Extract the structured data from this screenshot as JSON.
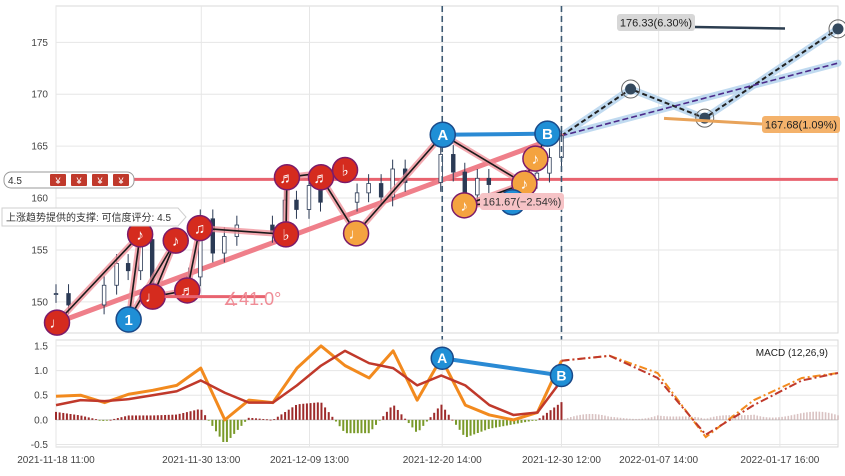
{
  "chart_data": [
    {
      "type": "line",
      "panel": "price",
      "y_ticks": [
        150,
        155,
        160,
        165,
        170,
        175
      ],
      "ylim": [
        147,
        178.5
      ],
      "x_range": [
        "2021-11-18 11:00",
        "2022-01-22 12:00"
      ],
      "x_ticks": [
        "2021-11-18 11:00",
        "2021-11-30 13:00",
        "2021-12-09 13:00",
        "2021-12-20 14:00",
        "2021-12-30 12:00",
        "2022-01-07 14:00",
        "2022-01-17 16:00"
      ],
      "grid": true,
      "series": [
        {
          "kind": "candlestick-approx",
          "x": [
            "2021-11-18 11:00",
            "2021-11-19 12:00",
            "2021-11-22 11:00",
            "2021-11-23 12:00",
            "2021-11-24 11:00",
            "2021-11-25 12:00",
            "2021-11-26 11:00",
            "2021-11-29 12:00",
            "2021-11-30 11:00",
            "2021-12-01 12:00",
            "2021-12-02 11:00",
            "2021-12-03 12:00",
            "2021-12-06 11:00",
            "2021-12-07 12:00",
            "2021-12-08 11:00",
            "2021-12-09 12:00",
            "2021-12-10 11:00",
            "2021-12-13 12:00",
            "2021-12-14 11:00",
            "2021-12-15 12:00",
            "2021-12-16 11:00",
            "2021-12-17 12:00",
            "2021-12-20 11:00",
            "2021-12-21 12:00",
            "2021-12-22 11:00",
            "2021-12-23 12:00",
            "2021-12-24 11:00",
            "2021-12-27 12:00",
            "2021-12-28 11:00",
            "2021-12-29 12:00",
            "2021-12-30 12:00"
          ],
          "close": [
            150.8,
            149.7,
            151.6,
            153.7,
            153.0,
            156.0,
            151.3,
            152.4,
            158.0,
            154.7,
            156.3,
            157.4,
            156.6,
            159.8,
            158.9,
            161.2,
            159.6,
            160.5,
            161.4,
            160.1,
            162.8,
            161.5,
            164.2,
            162.5,
            160.3,
            161.9,
            161.3,
            161.8,
            162.4,
            163.9,
            166.0
          ]
        }
      ],
      "wave_points": {
        "labels": [
          "♩",
          "1",
          "♩",
          "♪",
          "♪",
          "♬",
          "♫",
          "♬",
          "♭",
          "♬",
          "♭",
          "♩",
          "♪",
          "A",
          "♪",
          "2",
          "♪",
          "B"
        ],
        "x": [
          "2021-11-18 13:00",
          "2021-11-24 12:00",
          "2021-11-26 12:00",
          "2021-11-25 11:00",
          "2021-11-28 10:00",
          "2021-11-29 09:00",
          "2021-11-30 10:00",
          "2021-12-07 16:00",
          "2021-12-07 14:00",
          "2021-12-10 12:00",
          "2021-12-12 12:00",
          "2021-12-13 10:00",
          "2021-12-22 10:00",
          "2021-12-20 15:00",
          "2021-12-27 10:00",
          "2021-12-26 10:00",
          "2021-12-28 08:00",
          "2021-12-29 08:00"
        ],
        "y": [
          148.0,
          148.3,
          150.5,
          156.5,
          155.9,
          151.1,
          157.1,
          162.0,
          156.5,
          162.0,
          162.7,
          156.6,
          159.3,
          166.1,
          161.4,
          159.6,
          163.8,
          166.2
        ]
      },
      "support_line": {
        "label": "上涨趋势提供的支撑: 可信度评分: 4.5",
        "from": {
          "x": "2021-11-18 13:00",
          "y": 148.0
        },
        "to": {
          "x": "2021-12-30 12:00",
          "y": 166.0
        }
      },
      "projection_upper": {
        "x": [
          "2021-12-30 12:00",
          "2022-01-05 06:00",
          "2022-01-11 10:00",
          "2022-01-22 12:00"
        ],
        "y": [
          166.0,
          170.5,
          167.7,
          176.3
        ]
      },
      "projection_lower": {
        "x": [
          "2021-12-30 12:00",
          "2022-01-22 12:00"
        ],
        "y": [
          166.0,
          173.0
        ]
      },
      "horizontal_line": 161.8,
      "angle_annotation": "∡41.0°",
      "annotations": [
        {
          "text": "176.33(6.30%)"
        },
        {
          "text": "167.68(1.09%)"
        },
        {
          "text": "161.67(−2.54%)"
        },
        {
          "text": "4.5"
        }
      ]
    },
    {
      "type": "line",
      "panel": "macd",
      "title": "MACD (12,26,9)",
      "y_ticks": [
        -0.5,
        0.0,
        0.5,
        1.0,
        1.5
      ],
      "ylim": [
        -0.55,
        1.62
      ],
      "x_range": [
        "2021-11-18 11:00",
        "2022-01-22 12:00"
      ],
      "grid": true,
      "macd_line": {
        "x": [
          "2021-11-18 11:00",
          "2021-11-20 12:00",
          "2021-11-22 12:00",
          "2021-11-24 12:00",
          "2021-11-26 12:00",
          "2021-11-28 12:00",
          "2021-11-30 12:00",
          "2021-12-02 12:00",
          "2021-12-04 12:00",
          "2021-12-06 12:00",
          "2021-12-08 12:00",
          "2021-12-10 12:00",
          "2021-12-12 12:00",
          "2021-12-14 12:00",
          "2021-12-16 12:00",
          "2021-12-18 12:00",
          "2021-12-20 12:00",
          "2021-12-22 12:00",
          "2021-12-24 12:00",
          "2021-12-26 12:00",
          "2021-12-28 12:00",
          "2021-12-30 12:00"
        ],
        "y": [
          0.48,
          0.5,
          0.35,
          0.52,
          0.6,
          0.7,
          1.05,
          0.0,
          0.4,
          0.35,
          1.05,
          1.5,
          1.1,
          0.85,
          1.4,
          0.4,
          1.25,
          0.3,
          0.1,
          0.0,
          0.15,
          1.2
        ]
      },
      "signal_line": {
        "x": [
          "2021-11-18 11:00",
          "2021-11-20 12:00",
          "2021-11-22 12:00",
          "2021-11-24 12:00",
          "2021-11-26 12:00",
          "2021-11-28 12:00",
          "2021-11-30 12:00",
          "2021-12-02 12:00",
          "2021-12-04 12:00",
          "2021-12-06 12:00",
          "2021-12-08 12:00",
          "2021-12-10 12:00",
          "2021-12-12 12:00",
          "2021-12-14 12:00",
          "2021-12-16 12:00",
          "2021-12-18 12:00",
          "2021-12-20 12:00",
          "2021-12-22 12:00",
          "2021-12-24 12:00",
          "2021-12-26 12:00",
          "2021-12-28 12:00",
          "2021-12-30 12:00"
        ],
        "y": [
          0.3,
          0.4,
          0.38,
          0.42,
          0.5,
          0.58,
          0.8,
          0.55,
          0.35,
          0.35,
          0.7,
          1.1,
          1.4,
          1.15,
          1.05,
          0.7,
          0.9,
          0.7,
          0.3,
          0.1,
          0.15,
          0.8
        ]
      },
      "macd_projection": {
        "x": [
          "2021-12-30 12:00",
          "2022-01-03 12:00",
          "2022-01-07 12:00",
          "2022-01-11 12:00",
          "2022-01-15 12:00",
          "2022-01-19 12:00",
          "2022-01-22 12:00"
        ],
        "y": [
          1.2,
          1.3,
          0.95,
          -0.35,
          0.4,
          0.85,
          0.95
        ]
      },
      "signal_projection": {
        "x": [
          "2021-12-30 12:00",
          "2022-01-03 12:00",
          "2022-01-07 12:00",
          "2022-01-11 12:00",
          "2022-01-15 12:00",
          "2022-01-19 12:00",
          "2022-01-22 12:00"
        ],
        "y": [
          1.2,
          1.3,
          0.85,
          -0.3,
          0.3,
          0.8,
          0.95
        ]
      },
      "divergence_points": {
        "labels": [
          "A",
          "B"
        ],
        "x": [
          "2021-12-20 14:00",
          "2021-12-30 12:00"
        ],
        "y": [
          1.25,
          0.9
        ]
      }
    }
  ]
}
